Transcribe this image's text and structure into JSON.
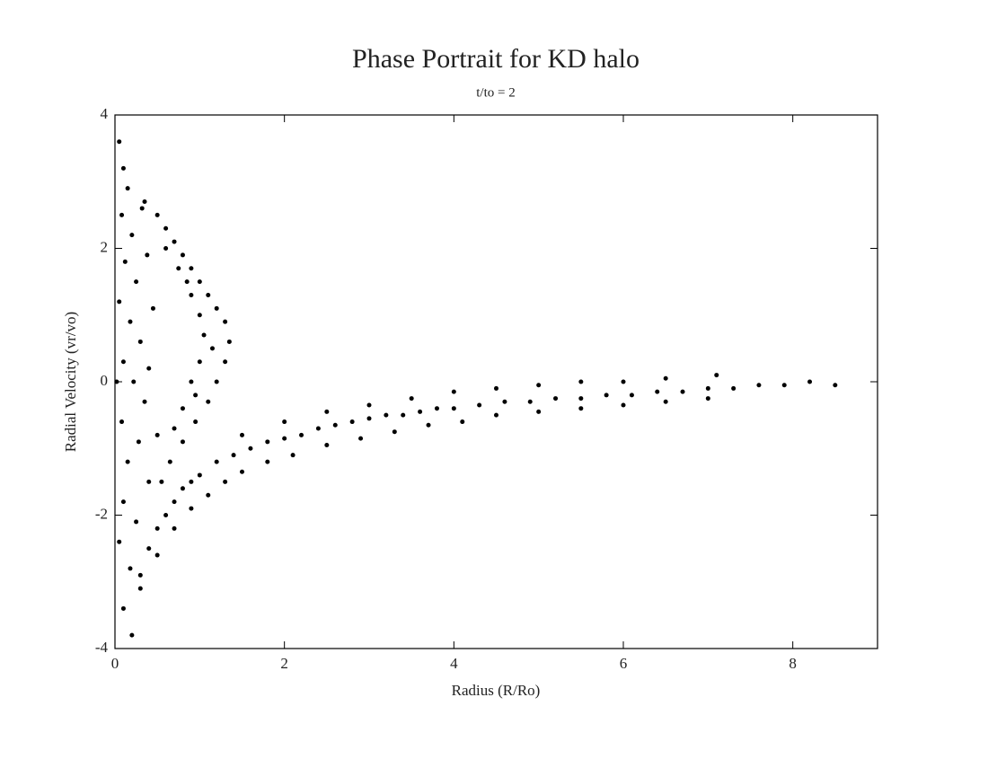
{
  "chart_data": {
    "type": "scatter",
    "title": "Phase Portrait for KD halo",
    "subtitle": "t/to = 2",
    "x_label": "Radius (R/Ro)",
    "y_label": "Radial Velocity (vr/vo)",
    "color": "#000000",
    "xlim": [
      0,
      9
    ],
    "ylim": [
      -4,
      4
    ],
    "xticks": [
      0,
      2,
      4,
      6,
      8
    ],
    "yticks": [
      -4,
      -2,
      0,
      2,
      4
    ],
    "x": [
      0.05,
      0.1,
      0.15,
      0.08,
      0.2,
      0.12,
      0.25,
      0.05,
      0.18,
      0.3,
      0.1,
      0.22,
      0.35,
      0.08,
      0.28,
      0.15,
      0.4,
      0.1,
      0.25,
      0.05,
      0.18,
      0.3,
      0.1,
      0.2,
      0.4,
      0.45,
      0.38,
      0.5,
      0.02,
      0.32,
      0.35,
      0.5,
      0.6,
      0.7,
      0.8,
      0.9,
      1.0,
      1.1,
      1.2,
      1.3,
      1.35,
      1.3,
      1.2,
      1.1,
      0.95,
      0.8,
      0.65,
      0.55,
      0.6,
      0.75,
      0.9,
      1.0,
      1.05,
      1.0,
      0.9,
      0.8,
      0.7,
      0.85,
      1.15,
      0.95,
      0.3,
      0.4,
      0.5,
      0.6,
      0.7,
      0.8,
      0.9,
      1.0,
      1.2,
      1.4,
      1.6,
      1.8,
      2.0,
      2.2,
      2.4,
      2.6,
      2.8,
      3.0,
      3.2,
      3.4,
      3.6,
      3.8,
      4.0,
      4.3,
      4.6,
      4.9,
      5.2,
      5.5,
      5.8,
      6.1,
      6.4,
      6.7,
      7.0,
      7.3,
      7.6,
      7.9,
      8.2,
      8.5,
      0.5,
      0.7,
      0.9,
      1.1,
      1.3,
      1.5,
      1.8,
      2.1,
      2.5,
      2.9,
      3.3,
      3.7,
      4.1,
      4.5,
      5.0,
      5.5,
      6.0,
      6.5,
      7.0,
      1.5,
      2.0,
      2.5,
      3.0,
      3.5,
      4.0,
      4.5,
      5.0,
      5.5,
      6.0,
      6.5,
      7.1
    ],
    "values": [
      3.6,
      3.2,
      2.9,
      2.5,
      2.2,
      1.8,
      1.5,
      1.2,
      0.9,
      0.6,
      0.3,
      0,
      -0.3,
      -0.6,
      -0.9,
      -1.2,
      -1.5,
      -1.8,
      -2.1,
      -2.4,
      -2.8,
      -3.1,
      -3.4,
      -3.8,
      0.2,
      1.1,
      1.9,
      -0.8,
      0,
      2.6,
      2.7,
      2.5,
      2.3,
      2.1,
      1.9,
      1.7,
      1.5,
      1.3,
      1.1,
      0.9,
      0.6,
      0.3,
      0,
      -0.3,
      -0.6,
      -0.9,
      -1.2,
      -1.5,
      2.0,
      1.7,
      1.3,
      1.0,
      0.7,
      0.3,
      0,
      -0.4,
      -0.7,
      1.5,
      0.5,
      -0.2,
      -2.9,
      -2.5,
      -2.2,
      -2.0,
      -1.8,
      -1.6,
      -1.5,
      -1.4,
      -1.2,
      -1.1,
      -1.0,
      -0.9,
      -0.85,
      -0.8,
      -0.7,
      -0.65,
      -0.6,
      -0.55,
      -0.5,
      -0.5,
      -0.45,
      -0.4,
      -0.4,
      -0.35,
      -0.3,
      -0.3,
      -0.25,
      -0.25,
      -0.2,
      -0.2,
      -0.15,
      -0.15,
      -0.1,
      -0.1,
      -0.05,
      -0.05,
      0,
      -0.05,
      -2.6,
      -2.2,
      -1.9,
      -1.7,
      -1.5,
      -1.35,
      -1.2,
      -1.1,
      -0.95,
      -0.85,
      -0.75,
      -0.65,
      -0.6,
      -0.5,
      -0.45,
      -0.4,
      -0.35,
      -0.3,
      -0.25,
      -0.8,
      -0.6,
      -0.45,
      -0.35,
      -0.25,
      -0.15,
      -0.1,
      -0.05,
      0,
      0,
      0.05,
      0.1
    ]
  }
}
